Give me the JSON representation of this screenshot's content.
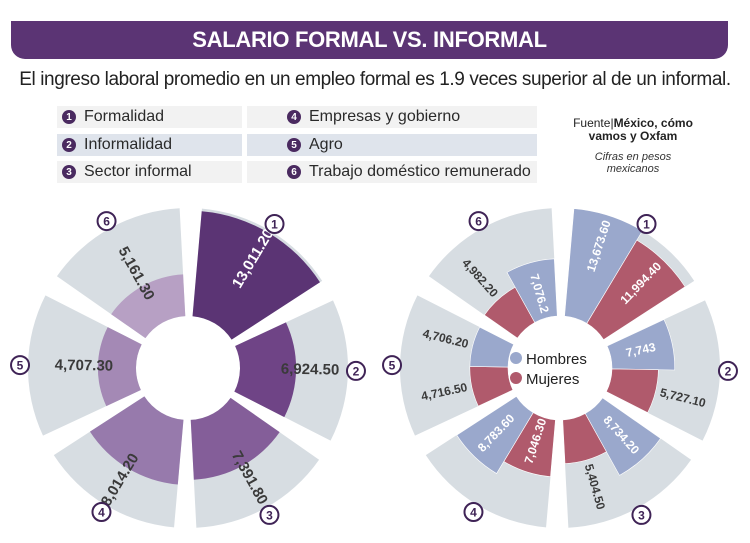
{
  "header": {
    "title": "SALARIO FORMAL VS.  INFORMAL",
    "subtitle": "El ingreso laboral promedio en un empleo formal es 1.9 veces superior al de un informal."
  },
  "legend": {
    "items": [
      {
        "n": "1",
        "label": "Formalidad"
      },
      {
        "n": "2",
        "label": "Informalidad"
      },
      {
        "n": "3",
        "label": "Sector informal"
      },
      {
        "n": "4",
        "label": "Empresas y gobierno"
      },
      {
        "n": "5",
        "label": "Agro"
      },
      {
        "n": "6",
        "label": "Trabajo doméstico remunerado"
      }
    ]
  },
  "source": {
    "prefix": "Fuente|",
    "name": "México, cómo vamos y Oxfam",
    "note": "Cifras en pesos mexicanos"
  },
  "gender_legend": {
    "men": "Hombres",
    "women": "Mujeres"
  },
  "colors": {
    "banner": "#5b3474",
    "grey": "#d7dde2",
    "men": "#9aa8cc",
    "women": "#b05a6c",
    "marker": "#3f2356"
  },
  "chart_data": [
    {
      "type": "radial-bar",
      "title": "Ingreso laboral promedio por tipo de empleo",
      "unit": "pesos mexicanos",
      "categories": [
        "Formalidad",
        "Informalidad",
        "Sector informal",
        "Empresas y gobierno",
        "Agro",
        "Trabajo doméstico remunerado"
      ],
      "values": [
        13011.2,
        6924.5,
        7391.8,
        8014.2,
        4707.3,
        5161.3
      ],
      "labels": [
        "13,011.20",
        "6,924.50",
        "7,391.80",
        "8,014.20",
        "4,707.30",
        "5,161.30"
      ],
      "colors": [
        "#5b3474",
        "#6f4486",
        "#845e99",
        "#977aac",
        "#a489b5",
        "#b7a0c4"
      ]
    },
    {
      "type": "radial-bar",
      "title": "Ingreso laboral promedio por sexo",
      "unit": "pesos mexicanos",
      "categories": [
        "Formalidad",
        "Informalidad",
        "Sector informal",
        "Empresas y gobierno",
        "Agro",
        "Trabajo doméstico remunerado"
      ],
      "series": [
        {
          "name": "Hombres",
          "values": [
            13673.6,
            7743,
            8734.2,
            8783.6,
            4706.2,
            7076.2
          ],
          "labels": [
            "13,673.60",
            "7,743",
            "8,734.20",
            "8,783.60",
            "4,706.20",
            "7,076.2"
          ]
        },
        {
          "name": "Mujeres",
          "values": [
            11994.4,
            5727.1,
            5404.5,
            7046.3,
            4716.5,
            4982.2
          ],
          "labels": [
            "11,994.40",
            "5,727.10",
            "5,404.50",
            "7,046.30",
            "4,716.50",
            "4,982.20"
          ]
        }
      ]
    }
  ]
}
